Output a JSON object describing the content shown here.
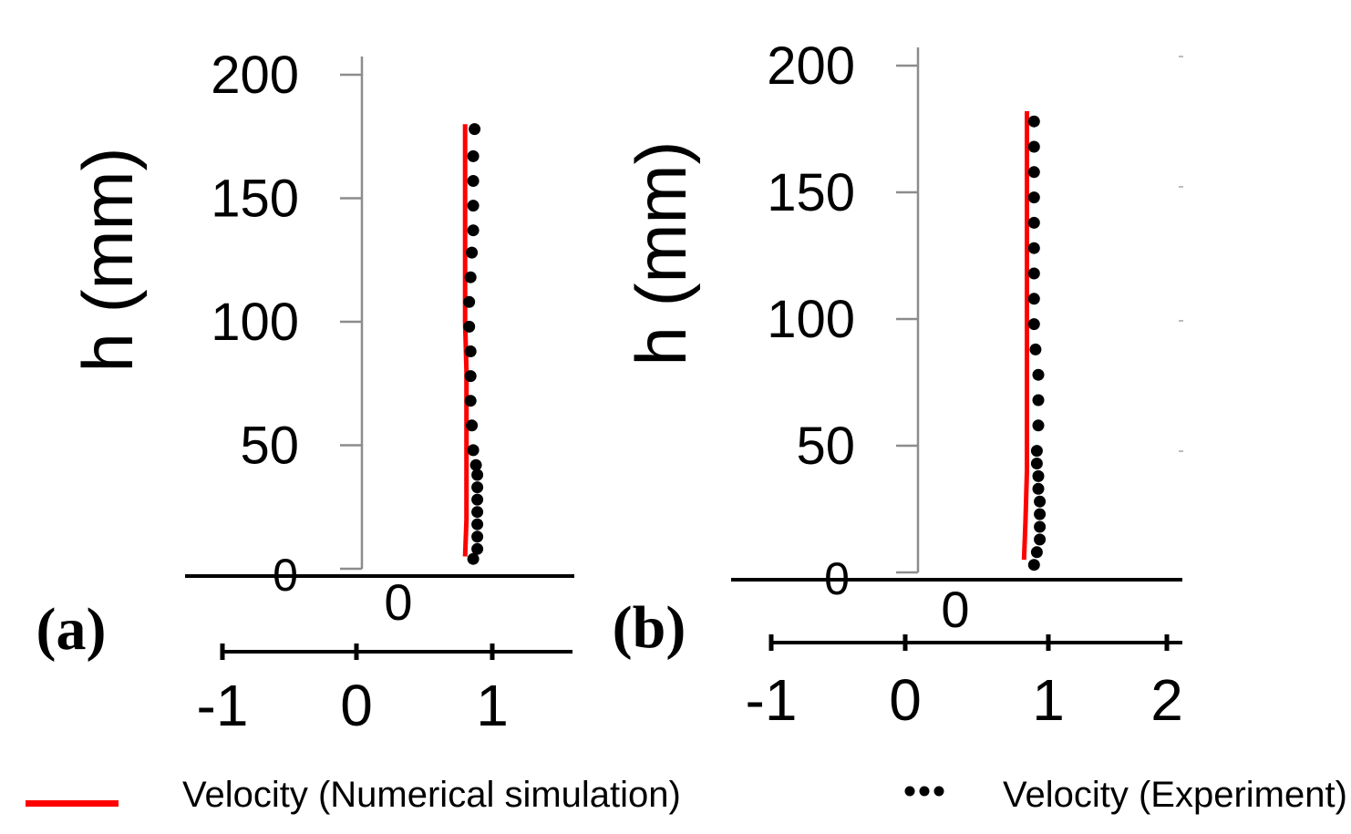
{
  "chart_data": [
    {
      "type": "scatter",
      "panel_label": "(a)",
      "ylabel": "h (mm)",
      "ylim": [
        0,
        200
      ],
      "yticks": [
        "0",
        "50",
        "100",
        "150",
        "200"
      ],
      "x_zero_label": "0",
      "velocity_axis_ticks": [
        "-1",
        "0",
        "1"
      ],
      "xlim": [
        -1,
        1.6
      ],
      "series": [
        {
          "name": "Velocity (Numerical simulation)",
          "style": "line",
          "color": "#ff0000",
          "points": [
            [
              0.8,
              5
            ],
            [
              0.81,
              20
            ],
            [
              0.81,
              40
            ],
            [
              0.81,
              60
            ],
            [
              0.81,
              80
            ],
            [
              0.8,
              100
            ],
            [
              0.8,
              120
            ],
            [
              0.8,
              140
            ],
            [
              0.8,
              160
            ],
            [
              0.8,
              180
            ]
          ]
        },
        {
          "name": "Velocity (Experiment)",
          "style": "dots",
          "color": "#000000",
          "points": [
            [
              0.86,
              4
            ],
            [
              0.89,
              8
            ],
            [
              0.89,
              13
            ],
            [
              0.89,
              18
            ],
            [
              0.89,
              23
            ],
            [
              0.89,
              28
            ],
            [
              0.89,
              33
            ],
            [
              0.89,
              38
            ],
            [
              0.88,
              42
            ],
            [
              0.86,
              48
            ],
            [
              0.85,
              58
            ],
            [
              0.84,
              68
            ],
            [
              0.84,
              78
            ],
            [
              0.84,
              88
            ],
            [
              0.83,
              98
            ],
            [
              0.83,
              108
            ],
            [
              0.84,
              118
            ],
            [
              0.85,
              128
            ],
            [
              0.86,
              137
            ],
            [
              0.86,
              147
            ],
            [
              0.86,
              157
            ],
            [
              0.86,
              167
            ],
            [
              0.87,
              178
            ]
          ]
        }
      ]
    },
    {
      "type": "scatter",
      "panel_label": "(b)",
      "ylabel": "h (mm)",
      "ylim": [
        0,
        200
      ],
      "yticks": [
        "0",
        "50",
        "100",
        "150",
        "200"
      ],
      "x_zero_label": "0",
      "velocity_axis_ticks": [
        "-1",
        "0",
        "1",
        "2"
      ],
      "xlim": [
        -1,
        2
      ],
      "series": [
        {
          "name": "Velocity (Numerical simulation)",
          "style": "line",
          "color": "#ff0000",
          "points": [
            [
              0.83,
              5
            ],
            [
              0.84,
              20
            ],
            [
              0.85,
              40
            ],
            [
              0.85,
              60
            ],
            [
              0.85,
              80
            ],
            [
              0.85,
              100
            ],
            [
              0.85,
              120
            ],
            [
              0.85,
              140
            ],
            [
              0.85,
              160
            ],
            [
              0.85,
              182
            ]
          ]
        },
        {
          "name": "Velocity (Experiment)",
          "style": "dots",
          "color": "#000000",
          "points": [
            [
              0.9,
              3
            ],
            [
              0.92,
              8
            ],
            [
              0.94,
              13
            ],
            [
              0.94,
              18
            ],
            [
              0.94,
              23
            ],
            [
              0.94,
              28
            ],
            [
              0.93,
              33
            ],
            [
              0.93,
              38
            ],
            [
              0.92,
              43
            ],
            [
              0.92,
              48
            ],
            [
              0.93,
              58
            ],
            [
              0.93,
              68
            ],
            [
              0.93,
              78
            ],
            [
              0.91,
              88
            ],
            [
              0.9,
              98
            ],
            [
              0.9,
              108
            ],
            [
              0.9,
              118
            ],
            [
              0.9,
              128
            ],
            [
              0.9,
              138
            ],
            [
              0.9,
              148
            ],
            [
              0.9,
              158
            ],
            [
              0.9,
              168
            ],
            [
              0.9,
              178
            ]
          ]
        }
      ]
    }
  ],
  "legend": {
    "simulation_label": "Velocity (Numerical simulation)",
    "simulation_color": "#ff0000",
    "experiment_label": "Velocity (Experiment)",
    "experiment_color": "#000000"
  }
}
